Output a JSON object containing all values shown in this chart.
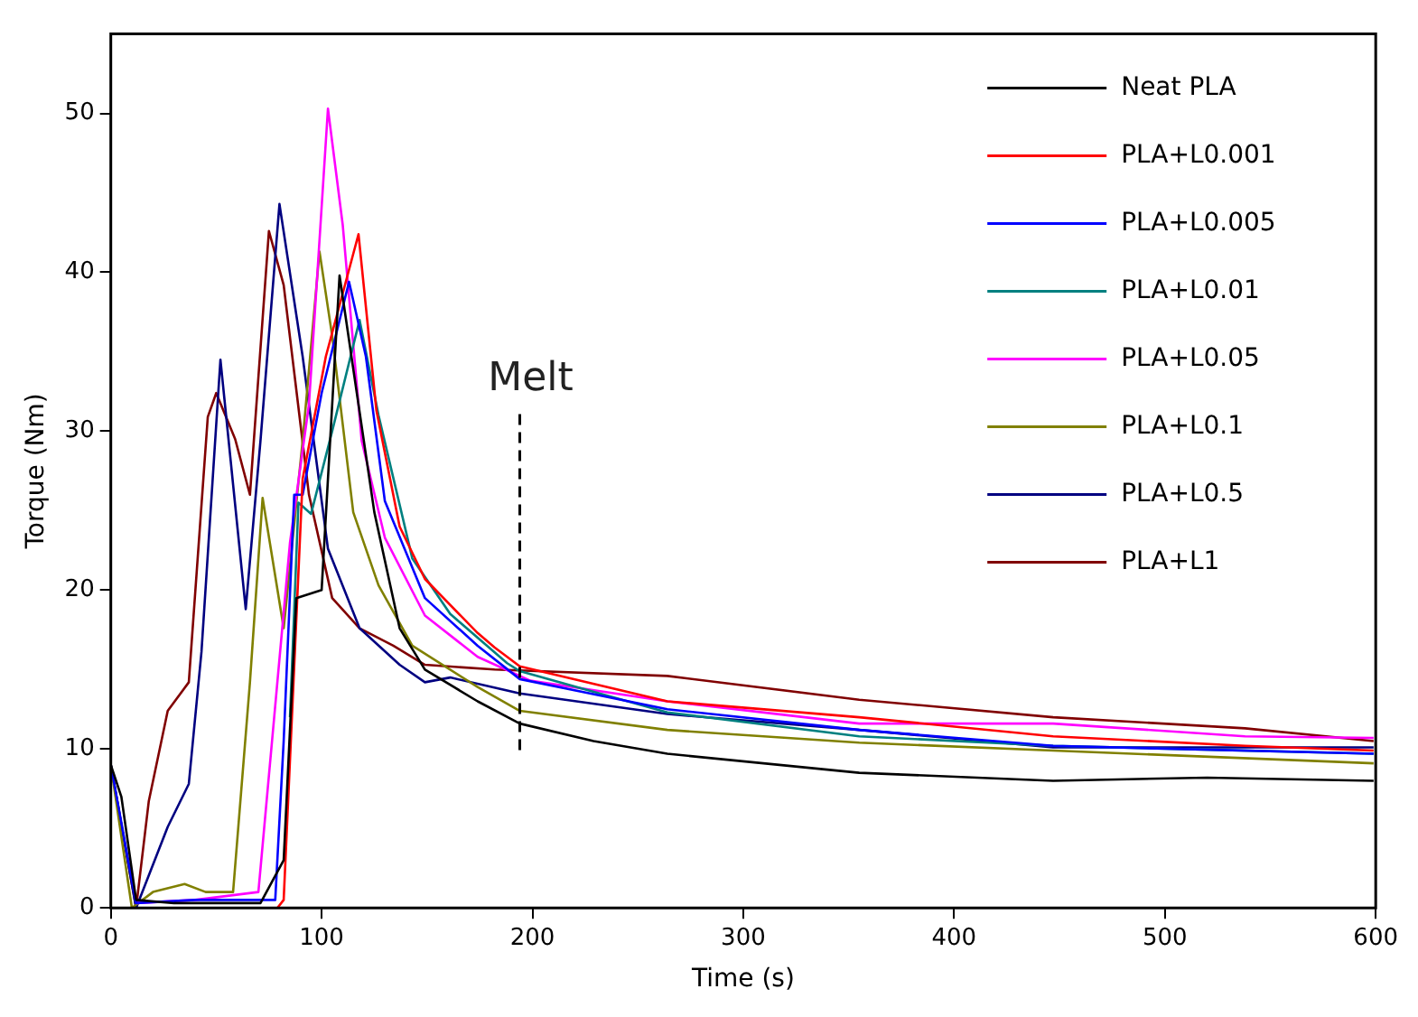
{
  "chart_data": {
    "type": "line",
    "xlabel": "Time (s)",
    "ylabel": "Torque (Nm)",
    "xlim": [
      0,
      600
    ],
    "xticks": [
      0,
      100,
      200,
      300,
      400,
      500,
      600
    ],
    "ylim": [
      0,
      55
    ],
    "yticks": [
      0,
      10,
      20,
      30,
      40,
      50
    ],
    "grid": false,
    "legend": "top right",
    "marker": "none",
    "line_style": "solid",
    "ref_lines": [
      {
        "axis": "x",
        "value": 194,
        "label": "Melt",
        "line_style": "dashed"
      }
    ],
    "series": [
      {
        "name": "Neat PLA",
        "color": "#000000",
        "x": [
          0,
          5,
          12,
          30,
          71,
          82,
          88,
          100,
          108.5,
          125,
          137,
          149,
          174,
          194,
          229,
          264,
          355,
          447,
          520,
          599
        ],
        "values": [
          9,
          7,
          0.5,
          0.3,
          0.3,
          3,
          19.5,
          20,
          39.8,
          24.9,
          17.6,
          15,
          13,
          11.6,
          10.5,
          9.7,
          8.5,
          8,
          8.2,
          8
        ]
      },
      {
        "name": "PLA+L0.001",
        "color": "#ff0000",
        "x": [
          79,
          82,
          91,
          102,
          117.5,
          126,
          137,
          149,
          174,
          182,
          194,
          264,
          355,
          447,
          538,
          599
        ],
        "values": [
          0,
          0.5,
          27,
          34.7,
          42.4,
          31.3,
          24,
          20.7,
          17.3,
          16.4,
          15.2,
          13,
          12,
          10.8,
          10.2,
          9.9
        ]
      },
      {
        "name": "PLA+L0.005",
        "color": "#0000ff",
        "x": [
          0,
          12,
          40,
          78,
          82,
          87,
          91,
          100,
          113,
          121,
          130,
          149,
          174,
          194,
          264,
          355,
          447,
          599
        ],
        "values": [
          9,
          0.3,
          0.5,
          0.5,
          10.5,
          26,
          26,
          32.4,
          39.4,
          34.7,
          25.6,
          19.5,
          16.5,
          14.4,
          12.5,
          11.2,
          10.2,
          9.7
        ]
      },
      {
        "name": "PLA+L0.01",
        "color": "#008080",
        "x": [
          85,
          89,
          95,
          105,
          118,
          127,
          143,
          161,
          188,
          194,
          264,
          355,
          447,
          599
        ],
        "values": [
          12,
          25.5,
          24.8,
          30,
          37,
          31,
          22,
          18.5,
          15.4,
          14.9,
          12.3,
          10.8,
          10.2,
          9.7
        ]
      },
      {
        "name": "PLA+L0.05",
        "color": "#ff00ff",
        "x": [
          12,
          40,
          70,
          85,
          94,
          103,
          110,
          119,
          130,
          149,
          174,
          199,
          264,
          355,
          447,
          538,
          599
        ],
        "values": [
          0.3,
          0.5,
          1,
          23,
          31.7,
          50.3,
          43,
          29.4,
          23.3,
          18.4,
          15.8,
          14.3,
          13,
          11.6,
          11.6,
          10.8,
          10.7
        ]
      },
      {
        "name": "PLA+L0.1",
        "color": "#808000",
        "x": [
          0,
          10,
          20,
          35,
          45,
          58,
          66,
          72,
          82,
          91,
          99,
          105,
          115,
          127,
          143,
          174,
          194,
          264,
          355,
          447,
          599
        ],
        "values": [
          9,
          0,
          1,
          1.5,
          1,
          1,
          14.2,
          25.8,
          17.6,
          29.4,
          41.3,
          36,
          24.9,
          20.3,
          16.5,
          13.9,
          12.4,
          11.2,
          10.4,
          9.9,
          9.1
        ]
      },
      {
        "name": "PLA+L0.5",
        "color": "#000080",
        "x": [
          0,
          12,
          27,
          37,
          43,
          52,
          64,
          71,
          80,
          91,
          103,
          118,
          137,
          149,
          161,
          194,
          264,
          355,
          447,
          599
        ],
        "values": [
          9,
          0,
          5.1,
          7.8,
          16.1,
          34.5,
          18.8,
          29.4,
          44.3,
          34.7,
          22.6,
          17.6,
          15.3,
          14.2,
          14.5,
          13.5,
          12.2,
          11.2,
          10.1,
          10.1
        ]
      },
      {
        "name": "PLA+L1",
        "color": "#800000",
        "x": [
          0,
          12,
          18,
          27,
          37,
          46,
          50,
          59,
          66,
          75,
          82,
          94,
          105,
          118,
          134,
          149,
          182,
          264,
          355,
          447,
          538,
          599
        ],
        "values": [
          9,
          0,
          6.7,
          12.4,
          14.2,
          30.9,
          32.4,
          29.5,
          26,
          42.6,
          39.2,
          26,
          19.5,
          17.6,
          16.5,
          15.3,
          15,
          14.6,
          13.1,
          12,
          11.3,
          10.5
        ]
      }
    ]
  }
}
